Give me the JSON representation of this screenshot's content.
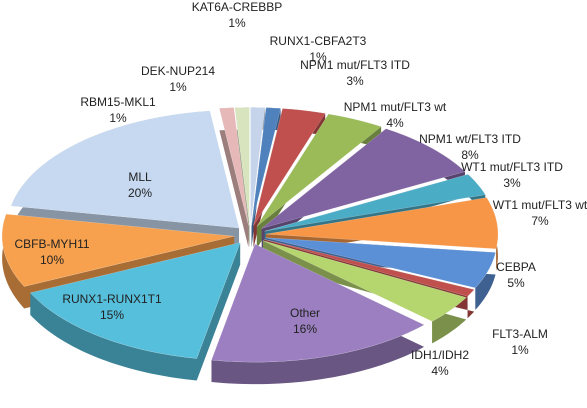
{
  "chart_data": {
    "type": "pie",
    "categories": [
      "KAT6A-CREBBP",
      "RUNX1-CBFA2T3",
      "NPM1 mut/FLT3 ITD",
      "NPM1 mut/FLT3 wt",
      "NPM1 wt/FLT3 ITD",
      "WT1 mut/FLT3 ITD",
      "WT1 mut/FLT3 wt",
      "CEBPA",
      "FLT3-ALM",
      "IDH1/IDH2",
      "Other",
      "RUNX1-RUNX1T1",
      "CBFB-MYH11",
      "MLL",
      "RBM15-MKL1",
      "DEK-NUP214"
    ],
    "values": [
      1,
      1,
      3,
      4,
      8,
      3,
      7,
      5,
      1,
      4,
      16,
      15,
      10,
      20,
      1,
      1
    ],
    "value_labels": [
      "1%",
      "1%",
      "3%",
      "4%",
      "8%",
      "3%",
      "7%",
      "5%",
      "1%",
      "4%",
      "16%",
      "15%",
      "10%",
      "20%",
      "1%",
      "1%"
    ],
    "colors": [
      "#c5d4ea",
      "#4f81bd",
      "#c0504d",
      "#9bbb59",
      "#8064a2",
      "#4bacc6",
      "#f79646",
      "#5b8fd6",
      "#c0504d",
      "#b5d56f",
      "#9b7fc0",
      "#56bfdc",
      "#f7a04d",
      "#c6d9f1",
      "#e6b9b8",
      "#d7e4bd"
    ]
  }
}
